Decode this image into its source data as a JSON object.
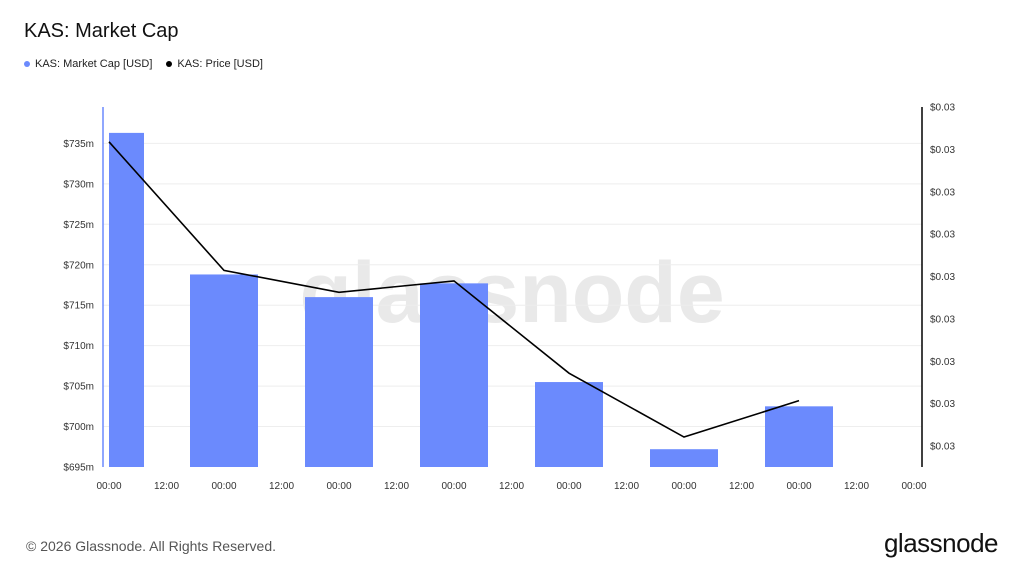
{
  "title": "KAS: Market Cap",
  "legend": [
    {
      "label": "KAS: Market Cap [USD]",
      "color": "#6b8afd"
    },
    {
      "label": "KAS: Price [USD]",
      "color": "#000000"
    }
  ],
  "watermark": "glassnode",
  "footer": {
    "copyright": "© 2026 Glassnode. All Rights Reserved.",
    "brand": "glassnode"
  },
  "chart_data": {
    "type": "bar",
    "x_ticks": [
      "00:00",
      "12:00",
      "00:00",
      "12:00",
      "00:00",
      "12:00",
      "00:00",
      "12:00",
      "00:00",
      "12:00",
      "00:00",
      "12:00",
      "00:00",
      "12:00",
      "00:00"
    ],
    "y_left_ticks": [
      "$695m",
      "$700m",
      "$705m",
      "$710m",
      "$715m",
      "$720m",
      "$725m",
      "$730m",
      "$735m"
    ],
    "y_right_ticks": [
      "$0.03",
      "$0.03",
      "$0.03",
      "$0.03",
      "$0.03",
      "$0.03",
      "$0.03",
      "$0.03",
      "$0.03"
    ],
    "ylim_left": [
      695,
      739.5
    ],
    "series": [
      {
        "name": "KAS: Market Cap [USD]",
        "type": "bar",
        "axis": "left",
        "x_index": [
          0,
          2,
          4,
          6,
          8,
          10,
          12
        ],
        "values": [
          736.3,
          718.8,
          716.0,
          717.7,
          705.5,
          697.2,
          702.5
        ],
        "color": "#6b8afd"
      },
      {
        "name": "KAS: Price [USD]",
        "type": "line",
        "axis": "left",
        "x_index": [
          0,
          2,
          4,
          6,
          8,
          10,
          12
        ],
        "values": [
          735.2,
          719.3,
          716.6,
          718.0,
          706.6,
          698.7,
          703.2
        ],
        "color": "#000000"
      }
    ],
    "grid": true,
    "legend_position": "top-left"
  }
}
